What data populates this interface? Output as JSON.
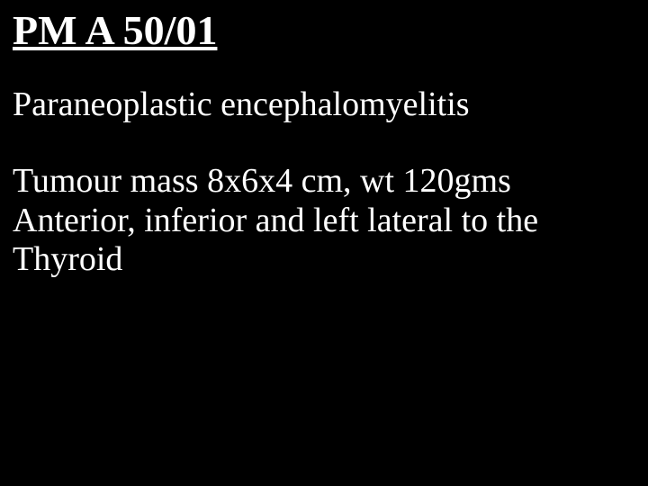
{
  "slide": {
    "background_color": "#000000",
    "text_color": "#ffffff",
    "font_family": "Times New Roman",
    "title": {
      "text": "PM A 50/01",
      "fontsize": 46,
      "bold": true,
      "underline": true
    },
    "subtitle": {
      "text": "Paraneoplastic encephalomyelitis",
      "fontsize": 38
    },
    "body": {
      "line1": "Tumour mass 8x6x4 cm, wt 120gms",
      "line2": "Anterior, inferior and left lateral to the",
      "line3": "Thyroid",
      "fontsize": 38
    }
  }
}
